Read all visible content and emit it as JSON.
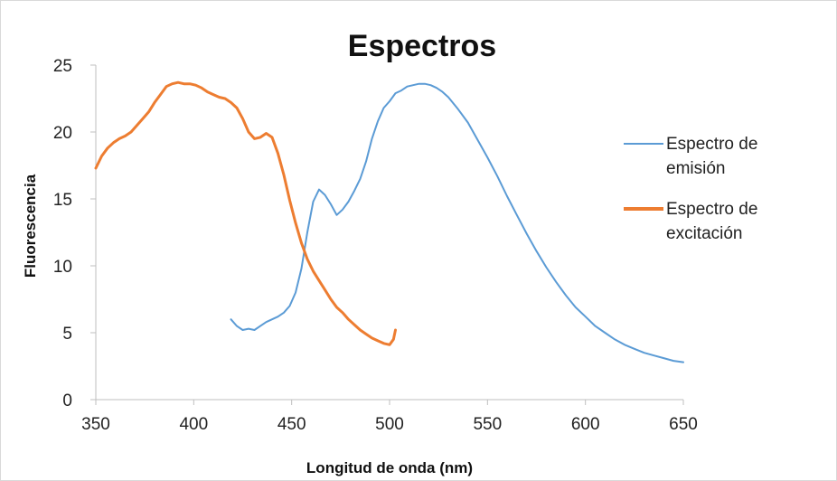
{
  "chart_data": {
    "type": "line",
    "title": "Espectros",
    "xlabel": "Longitud de onda (nm)",
    "ylabel": "Fluorescencia",
    "xlim": [
      350,
      650
    ],
    "ylim": [
      0,
      25
    ],
    "xticks": [
      350,
      400,
      450,
      500,
      550,
      600,
      650
    ],
    "yticks": [
      0,
      5,
      10,
      15,
      20,
      25
    ],
    "grid": false,
    "legend_position": "right",
    "series": [
      {
        "name_lines": [
          "Espectro de",
          "emisión"
        ],
        "color": "#5b9bd5",
        "x": [
          419,
          422,
          425,
          428,
          431,
          434,
          437,
          440,
          443,
          446,
          449,
          452,
          455,
          458,
          461,
          464,
          467,
          470,
          473,
          476,
          479,
          482,
          485,
          488,
          491,
          494,
          497,
          500,
          503,
          506,
          509,
          512,
          515,
          518,
          521,
          524,
          527,
          530,
          535,
          540,
          545,
          550,
          555,
          560,
          565,
          570,
          575,
          580,
          585,
          590,
          595,
          600,
          605,
          610,
          615,
          620,
          625,
          630,
          635,
          640,
          645,
          650
        ],
        "y": [
          6.0,
          5.5,
          5.2,
          5.3,
          5.2,
          5.5,
          5.8,
          6.0,
          6.2,
          6.5,
          7.0,
          8.0,
          9.8,
          12.5,
          14.8,
          15.7,
          15.3,
          14.6,
          13.8,
          14.2,
          14.8,
          15.6,
          16.5,
          17.8,
          19.5,
          20.8,
          21.8,
          22.3,
          22.9,
          23.1,
          23.4,
          23.5,
          23.6,
          23.6,
          23.5,
          23.3,
          23.0,
          22.6,
          21.7,
          20.7,
          19.4,
          18.1,
          16.7,
          15.2,
          13.8,
          12.4,
          11.1,
          9.9,
          8.8,
          7.8,
          6.9,
          6.2,
          5.5,
          5.0,
          4.5,
          4.1,
          3.8,
          3.5,
          3.3,
          3.1,
          2.9,
          2.8
        ]
      },
      {
        "name_lines": [
          "Espectro de",
          "excitación"
        ],
        "color": "#ed7d31",
        "x": [
          350,
          353,
          356,
          359,
          362,
          365,
          368,
          371,
          374,
          377,
          380,
          383,
          386,
          389,
          392,
          395,
          398,
          401,
          404,
          407,
          410,
          413,
          416,
          419,
          422,
          425,
          428,
          431,
          434,
          437,
          440,
          443,
          446,
          449,
          452,
          455,
          458,
          461,
          464,
          467,
          470,
          473,
          476,
          479,
          482,
          485,
          488,
          491,
          494,
          497,
          500,
          502,
          503
        ],
        "y": [
          17.3,
          18.2,
          18.8,
          19.2,
          19.5,
          19.7,
          20.0,
          20.5,
          21.0,
          21.5,
          22.2,
          22.8,
          23.4,
          23.6,
          23.7,
          23.6,
          23.6,
          23.5,
          23.3,
          23.0,
          22.8,
          22.6,
          22.5,
          22.2,
          21.8,
          21.0,
          20.0,
          19.5,
          19.6,
          19.9,
          19.6,
          18.4,
          16.8,
          14.9,
          13.2,
          11.7,
          10.5,
          9.6,
          8.9,
          8.2,
          7.5,
          6.9,
          6.5,
          6.0,
          5.6,
          5.2,
          4.9,
          4.6,
          4.4,
          4.2,
          4.1,
          4.5,
          5.2
        ]
      }
    ]
  }
}
